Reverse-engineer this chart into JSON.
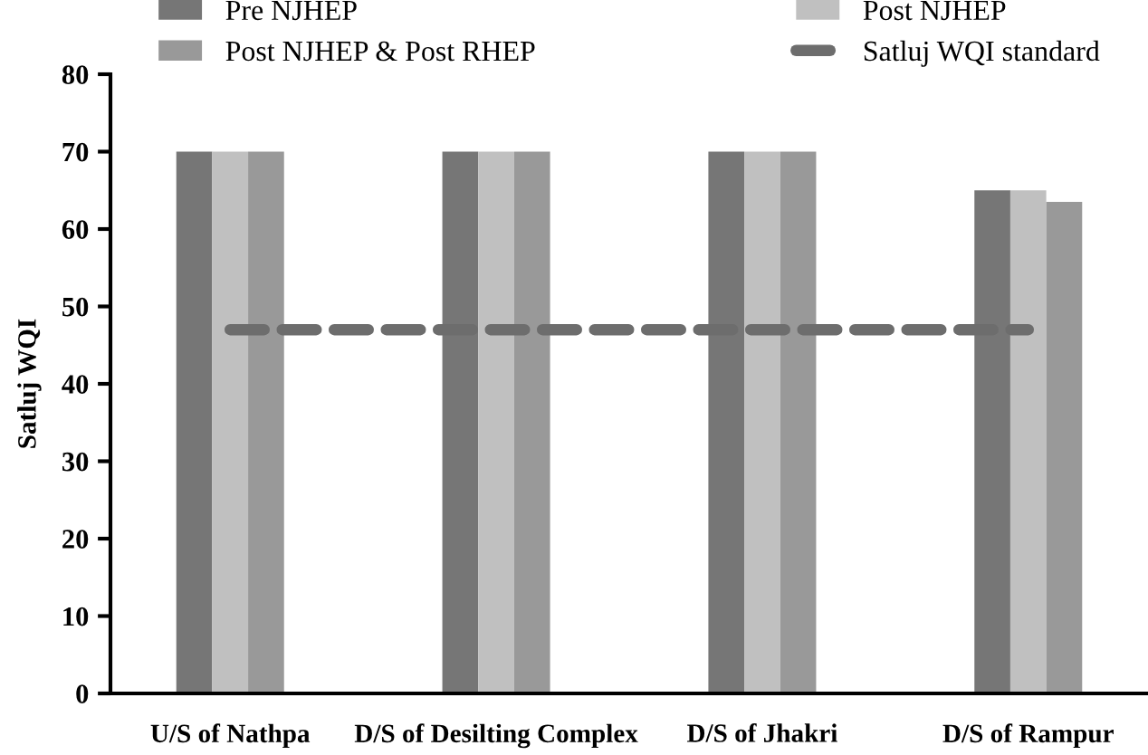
{
  "chart_data": {
    "type": "bar",
    "ylabel": "Satluj WQI",
    "categories": [
      "U/S of Nathpa",
      "D/S of Desilting Complex",
      "D/S of Jhakri",
      "D/S of Rampur"
    ],
    "series": [
      {
        "name": "Pre NJHEP",
        "color": "#767676",
        "values": [
          70,
          70,
          70,
          65
        ]
      },
      {
        "name": "Post NJHEP",
        "color": "#c0c0c0",
        "values": [
          70,
          70,
          70,
          65
        ]
      },
      {
        "name": "Post NJHEP & Post RHEP",
        "color": "#999999",
        "values": [
          70,
          70,
          70,
          63.5
        ]
      },
      {
        "name": "Satluj WQI standard",
        "type": "line",
        "line_style": "dashed",
        "color": "#6d6d6d",
        "values": [
          47,
          47,
          47,
          47
        ]
      }
    ],
    "ylim": [
      0,
      80
    ],
    "yticks": [
      0,
      10,
      20,
      30,
      40,
      50,
      60,
      70,
      80
    ],
    "grid": false,
    "legend": "top"
  }
}
